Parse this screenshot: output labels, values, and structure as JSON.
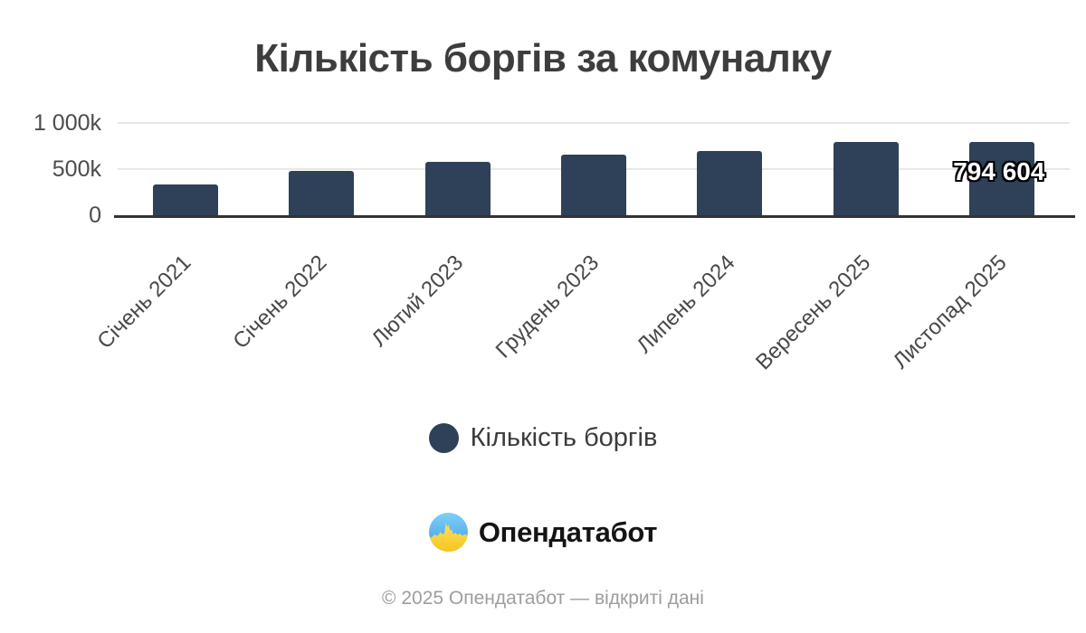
{
  "title": "Кількість боргів за комуналку",
  "chart_data": {
    "type": "bar",
    "title": "Кількість боргів за комуналку",
    "categories": [
      "Січень 2021",
      "Січень 2022",
      "Лютий 2023",
      "Грудень 2023",
      "Липень 2024",
      "Вересень 2025",
      "Листопад 2025"
    ],
    "series": [
      {
        "name": "Кількість боргів",
        "values": [
          330000,
          480000,
          580000,
          660000,
          700000,
          790000,
          794604
        ]
      }
    ],
    "last_point_label": "794 604",
    "xlabel": "",
    "ylabel": "",
    "ylim": [
      0,
      1000000
    ],
    "y_ticks": [
      {
        "label": "1 000k",
        "value": 1000000
      },
      {
        "label": "500k",
        "value": 500000
      },
      {
        "label": "0",
        "value": 0
      }
    ],
    "grid": true,
    "legend_position": "bottom",
    "bar_color": "#2e4158"
  },
  "colors": {
    "bar": "#2e4158",
    "axis": "#333333",
    "gridline": "#e7e7e7",
    "title_text": "#3d3d3d",
    "logo_blue": "#4aa8ee",
    "logo_yellow": "#ffd94d"
  },
  "legend": {
    "label": "Кількість боргів"
  },
  "branding": {
    "logo_text": "Опендатабот",
    "logo_icon": "opendatabot-flag-skyline-icon"
  },
  "footer": {
    "text": "© 2025 Опендатабот — відкриті дані"
  }
}
